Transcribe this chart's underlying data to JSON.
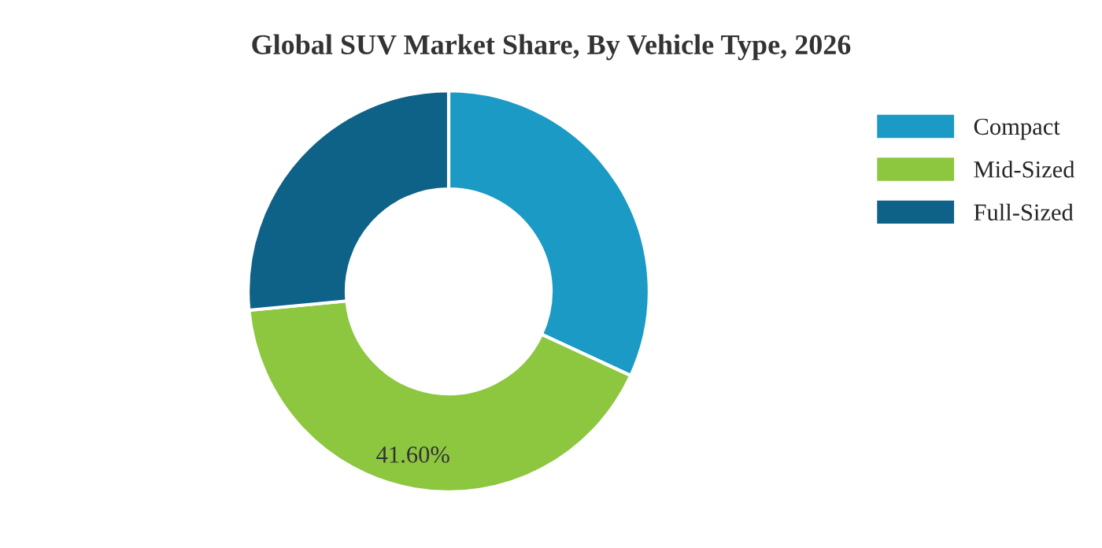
{
  "chart_data": {
    "type": "donut",
    "title": "Global SUV Market Share, By Vehicle Type, 2026",
    "categories": [
      "Compact",
      "Mid-Sized",
      "Full-Sized"
    ],
    "values": [
      31.9,
      41.6,
      26.5
    ],
    "value_labels": [
      null,
      "41.60%",
      null
    ],
    "colors": [
      "#1b9ac5",
      "#8dc63f",
      "#0e6187"
    ],
    "legend": "top right"
  }
}
